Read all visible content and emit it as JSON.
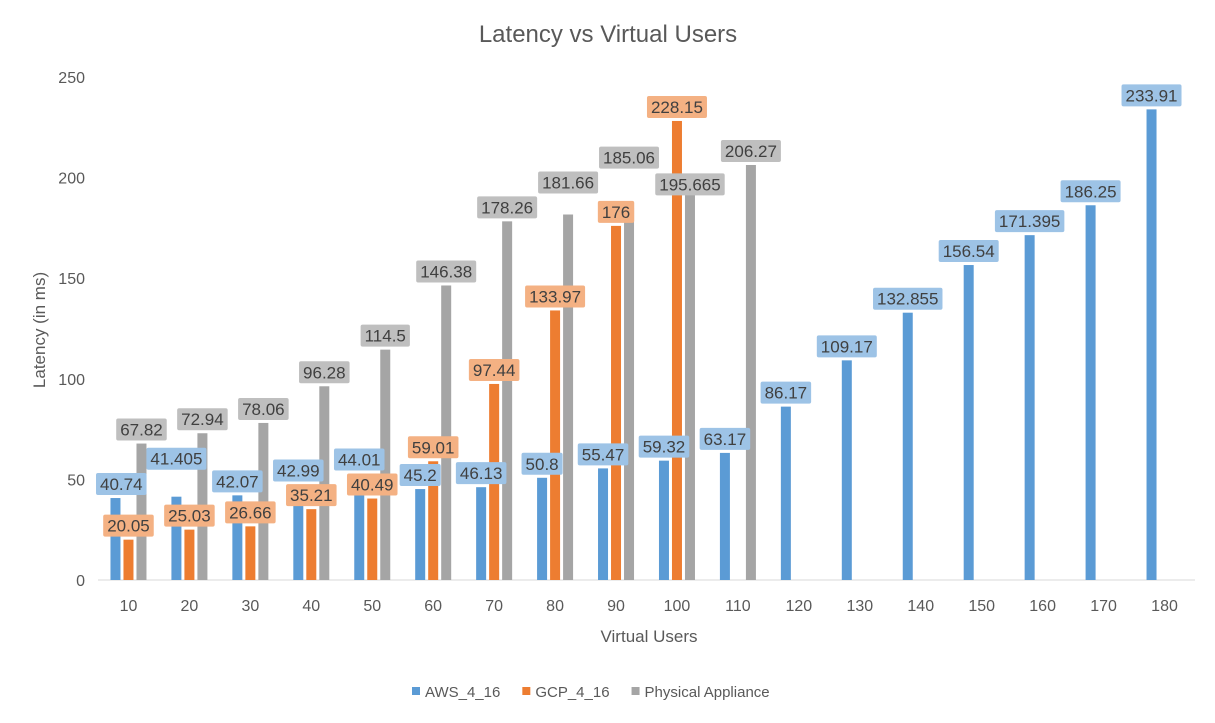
{
  "chart_data": {
    "type": "bar",
    "title": "Latency vs Virtual Users",
    "xlabel": "Virtual Users",
    "ylabel": "Latency (in ms)",
    "ylim": [
      0,
      250
    ],
    "yticks": [
      0,
      50,
      100,
      150,
      200,
      250
    ],
    "grid": false,
    "legend_position": "bottom",
    "categories": [
      "10",
      "20",
      "30",
      "40",
      "50",
      "60",
      "70",
      "80",
      "90",
      "100",
      "110",
      "120",
      "130",
      "140",
      "150",
      "160",
      "170",
      "180"
    ],
    "series": [
      {
        "name": "AWS_4_16",
        "color": "#5b9bd5",
        "label_color": "#9dc3e6",
        "values": [
          40.74,
          41.405,
          42.07,
          42.99,
          44.01,
          45.2,
          46.13,
          50.8,
          55.47,
          59.32,
          63.17,
          86.17,
          109.17,
          132.855,
          156.54,
          171.395,
          186.25,
          233.91
        ]
      },
      {
        "name": "GCP_4_16",
        "color": "#ed7d31",
        "label_color": "#f4b183",
        "values": [
          20.05,
          25.03,
          26.66,
          35.21,
          40.49,
          59.01,
          97.44,
          133.97,
          176,
          228.15,
          null,
          null,
          null,
          null,
          null,
          null,
          null,
          null
        ]
      },
      {
        "name": "Physical Appliance",
        "color": "#a5a5a5",
        "label_color": "#bfbfbf",
        "values": [
          67.82,
          72.94,
          78.06,
          96.28,
          114.5,
          146.38,
          178.26,
          181.66,
          185.06,
          195.665,
          206.27,
          null,
          null,
          null,
          null,
          null,
          null,
          null
        ]
      }
    ]
  }
}
